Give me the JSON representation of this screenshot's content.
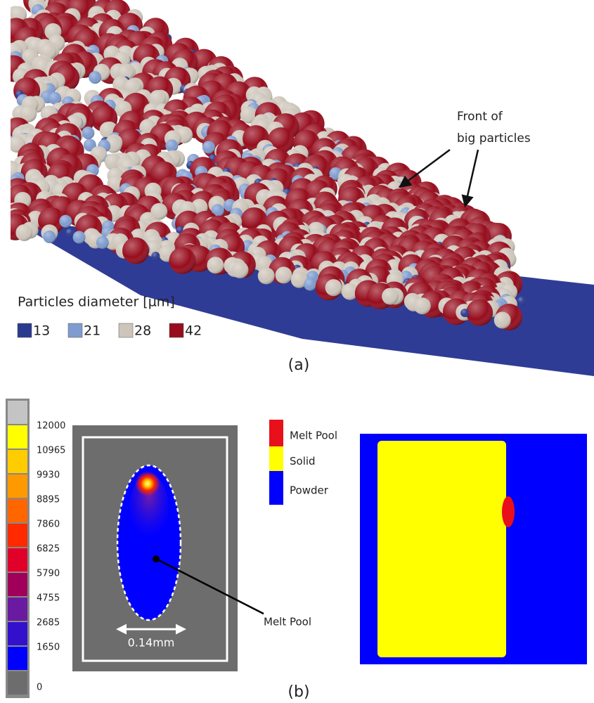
{
  "panel_a": {
    "annotation": [
      "Front of",
      "big particles"
    ],
    "legend_title": "Particles diameter [µm]",
    "legend": [
      {
        "label": "13",
        "color": "#2b3a8f"
      },
      {
        "label": "21",
        "color": "#7f9ccf"
      },
      {
        "label": "28",
        "color": "#cdc5ba"
      },
      {
        "label": "42",
        "color": "#970d1d"
      }
    ],
    "label": "(a)"
  },
  "panel_b": {
    "colorbar_labels": [
      "12000",
      "10965",
      "9930",
      "8895",
      "7860",
      "6825",
      "5790",
      "4755",
      "2685",
      "1650",
      "0"
    ],
    "scale_label": "0.14mm",
    "pointer_label": "Melt Pool",
    "legend": [
      {
        "label": "Melt Pool",
        "color": "#e8101a"
      },
      {
        "label": "Solid",
        "color": "#ffff00"
      },
      {
        "label": "Powder",
        "color": "#0000ff"
      }
    ],
    "label": "(b)"
  }
}
